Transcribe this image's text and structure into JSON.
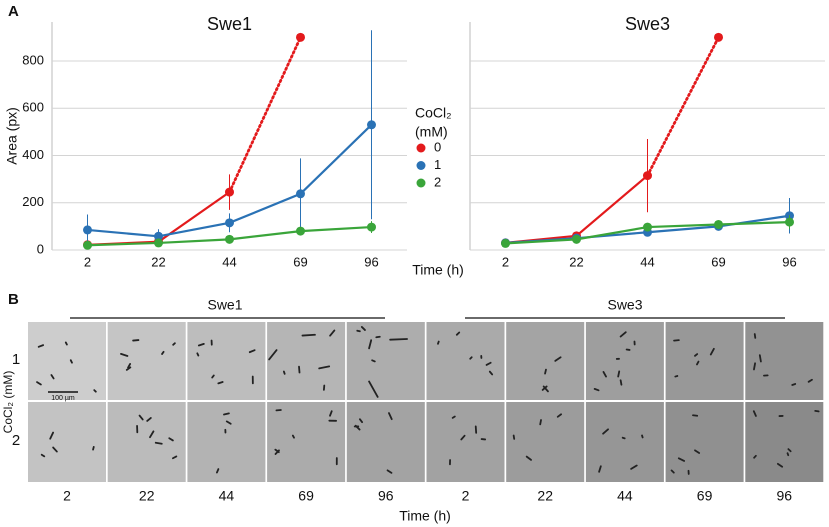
{
  "panel_labels": [
    "A",
    "B"
  ],
  "xlabel": "Time (h)",
  "legend": {
    "title": [
      "CoCl₂",
      "(mM)"
    ]
  },
  "chart_data": [
    {
      "type": "line",
      "title": "Swe1",
      "ylabel": "Area (px)",
      "categories": [
        "2",
        "22",
        "44",
        "69",
        "96"
      ],
      "ylim": [
        0,
        965
      ],
      "yticks": [
        0,
        200,
        400,
        600,
        800
      ],
      "grid": true,
      "show_ytick_labels": true,
      "series": [
        {
          "name": "0",
          "color": "#e31a1c",
          "values": [
            22,
            35,
            245,
            900,
            null
          ],
          "errors": [
            null,
            null,
            75,
            null,
            null
          ],
          "dotted_from": 2
        },
        {
          "name": "1",
          "color": "#2a72b5",
          "values": [
            85,
            58,
            115,
            238,
            530
          ],
          "errors": [
            65,
            30,
            40,
            150,
            400
          ]
        },
        {
          "name": "2",
          "color": "#3aa53a",
          "values": [
            20,
            30,
            45,
            80,
            97
          ],
          "errors": [
            null,
            null,
            null,
            null,
            25
          ]
        }
      ]
    },
    {
      "type": "line",
      "title": "Swe3",
      "categories": [
        "2",
        "22",
        "44",
        "69",
        "96"
      ],
      "ylim": [
        0,
        965
      ],
      "yticks": [
        0,
        200,
        400,
        600,
        800
      ],
      "grid": true,
      "show_ytick_labels": false,
      "series": [
        {
          "name": "0",
          "color": "#e31a1c",
          "values": [
            30,
            60,
            315,
            900,
            null
          ],
          "errors": [
            null,
            null,
            155,
            null,
            null
          ],
          "dotted_from": 2
        },
        {
          "name": "1",
          "color": "#2a72b5",
          "values": [
            30,
            50,
            75,
            100,
            145
          ],
          "errors": [
            null,
            null,
            null,
            null,
            75
          ]
        },
        {
          "name": "2",
          "color": "#3aa53a",
          "values": [
            28,
            45,
            97,
            108,
            118
          ],
          "errors": [
            null,
            null,
            null,
            null,
            30
          ]
        }
      ]
    }
  ],
  "images": {
    "groups": [
      "Swe1",
      "Swe3"
    ],
    "rows": [
      "1",
      "2"
    ],
    "row_label": "CoCl₂ (mM)",
    "times": [
      "2",
      "22",
      "44",
      "69",
      "96"
    ],
    "xlabel": "Time (h)",
    "scale_bar": "100 µm"
  }
}
